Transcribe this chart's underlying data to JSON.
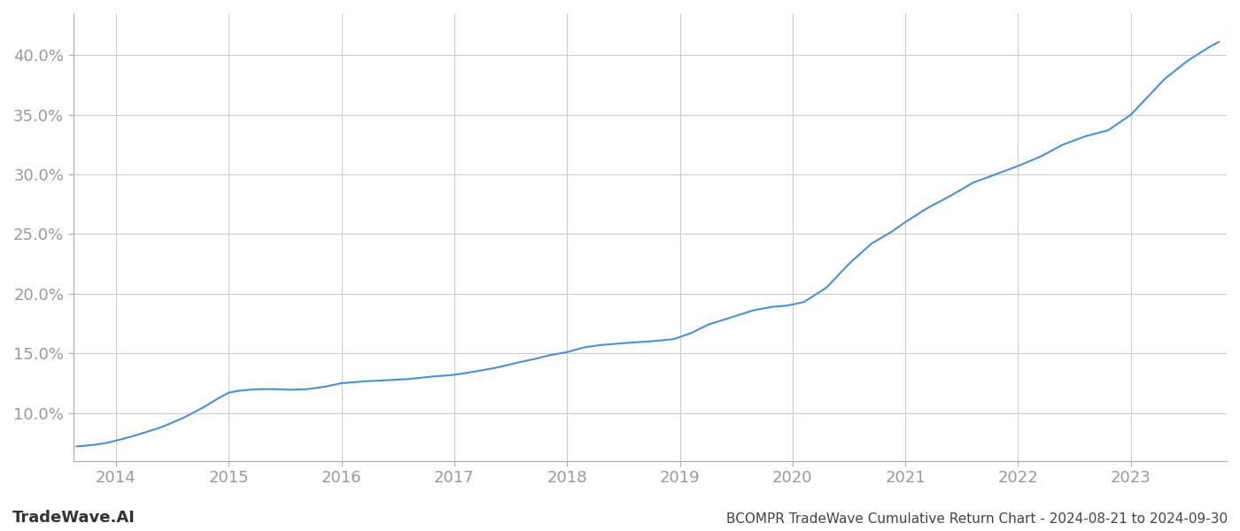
{
  "title": "BCOMPR TradeWave Cumulative Return Chart - 2024-08-21 to 2024-09-30",
  "watermark": "TradeWave.AI",
  "line_color": "#4a90d9",
  "background_color": "#ffffff",
  "grid_color": "#cccccc",
  "x_tick_color": "#999999",
  "y_tick_color": "#999999",
  "title_color": "#444444",
  "watermark_color": "#333333",
  "x_ticks": [
    2014,
    2015,
    2016,
    2017,
    2018,
    2019,
    2020,
    2021,
    2022,
    2023
  ],
  "y_ticks": [
    10.0,
    15.0,
    20.0,
    25.0,
    30.0,
    35.0,
    40.0
  ],
  "xlim": [
    2013.62,
    2023.85
  ],
  "ylim": [
    6.0,
    43.5
  ],
  "data_x": [
    2013.65,
    2013.72,
    2013.82,
    2013.92,
    2014.05,
    2014.2,
    2014.4,
    2014.6,
    2014.78,
    2014.92,
    2015.0,
    2015.08,
    2015.18,
    2015.28,
    2015.4,
    2015.55,
    2015.7,
    2015.85,
    2016.0,
    2016.2,
    2016.4,
    2016.6,
    2016.8,
    2017.0,
    2017.2,
    2017.4,
    2017.55,
    2017.7,
    2017.85,
    2018.0,
    2018.15,
    2018.3,
    2018.5,
    2018.65,
    2018.8,
    2018.95,
    2019.1,
    2019.25,
    2019.45,
    2019.65,
    2019.82,
    2019.95,
    2020.1,
    2020.3,
    2020.5,
    2020.7,
    2020.88,
    2021.0,
    2021.2,
    2021.4,
    2021.6,
    2021.8,
    2022.0,
    2022.2,
    2022.4,
    2022.6,
    2022.8,
    2023.0,
    2023.15,
    2023.3,
    2023.5,
    2023.7,
    2023.78
  ],
  "data_y": [
    7.2,
    7.25,
    7.35,
    7.5,
    7.8,
    8.2,
    8.8,
    9.6,
    10.5,
    11.3,
    11.7,
    11.85,
    11.95,
    12.0,
    12.0,
    11.95,
    12.0,
    12.2,
    12.5,
    12.65,
    12.75,
    12.85,
    13.05,
    13.2,
    13.5,
    13.85,
    14.2,
    14.5,
    14.85,
    15.1,
    15.5,
    15.7,
    15.85,
    15.95,
    16.05,
    16.2,
    16.7,
    17.4,
    18.0,
    18.6,
    18.9,
    19.0,
    19.3,
    20.5,
    22.5,
    24.2,
    25.2,
    26.0,
    27.2,
    28.2,
    29.3,
    30.0,
    30.7,
    31.5,
    32.5,
    33.2,
    33.7,
    35.0,
    36.5,
    38.0,
    39.5,
    40.7,
    41.1
  ]
}
